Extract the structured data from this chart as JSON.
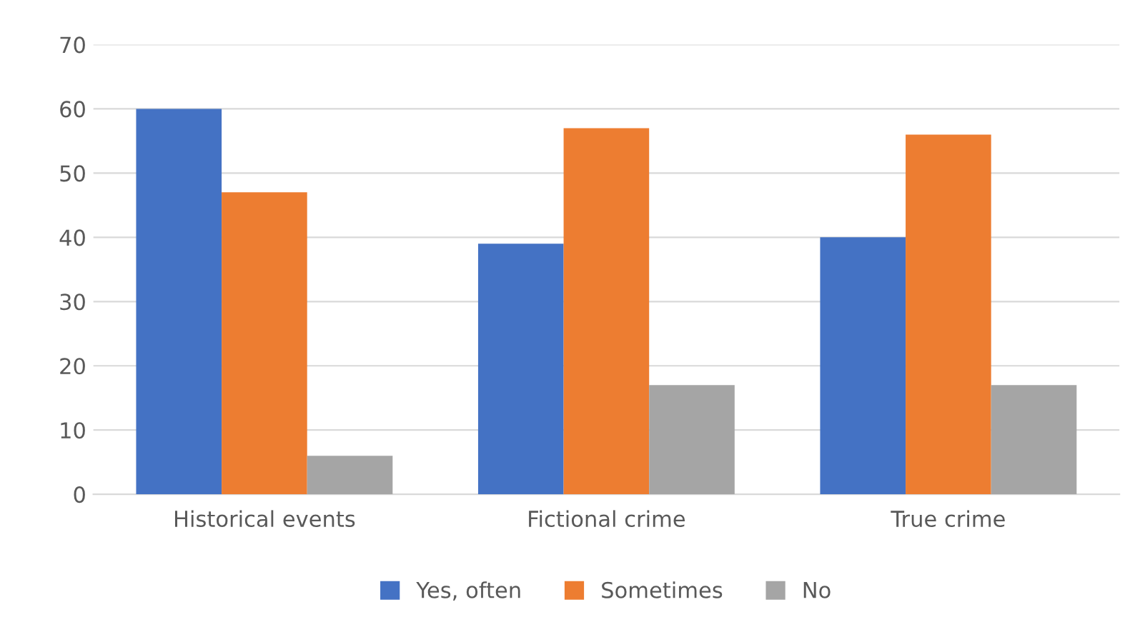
{
  "chart_data": {
    "type": "bar",
    "categories": [
      "Historical events",
      "Fictional crime",
      "True crime"
    ],
    "series": [
      {
        "name": "Yes, often",
        "color": "#4472c4",
        "values": [
          60,
          39,
          40
        ]
      },
      {
        "name": "Sometimes",
        "color": "#ed7d31",
        "values": [
          47,
          57,
          56
        ]
      },
      {
        "name": "No",
        "color": "#a5a5a5",
        "values": [
          6,
          17,
          17
        ]
      }
    ],
    "ylim": [
      0,
      70
    ],
    "yticks": [
      0,
      10,
      20,
      30,
      40,
      50,
      60,
      70
    ],
    "grid": "y",
    "legend": "bottom"
  }
}
